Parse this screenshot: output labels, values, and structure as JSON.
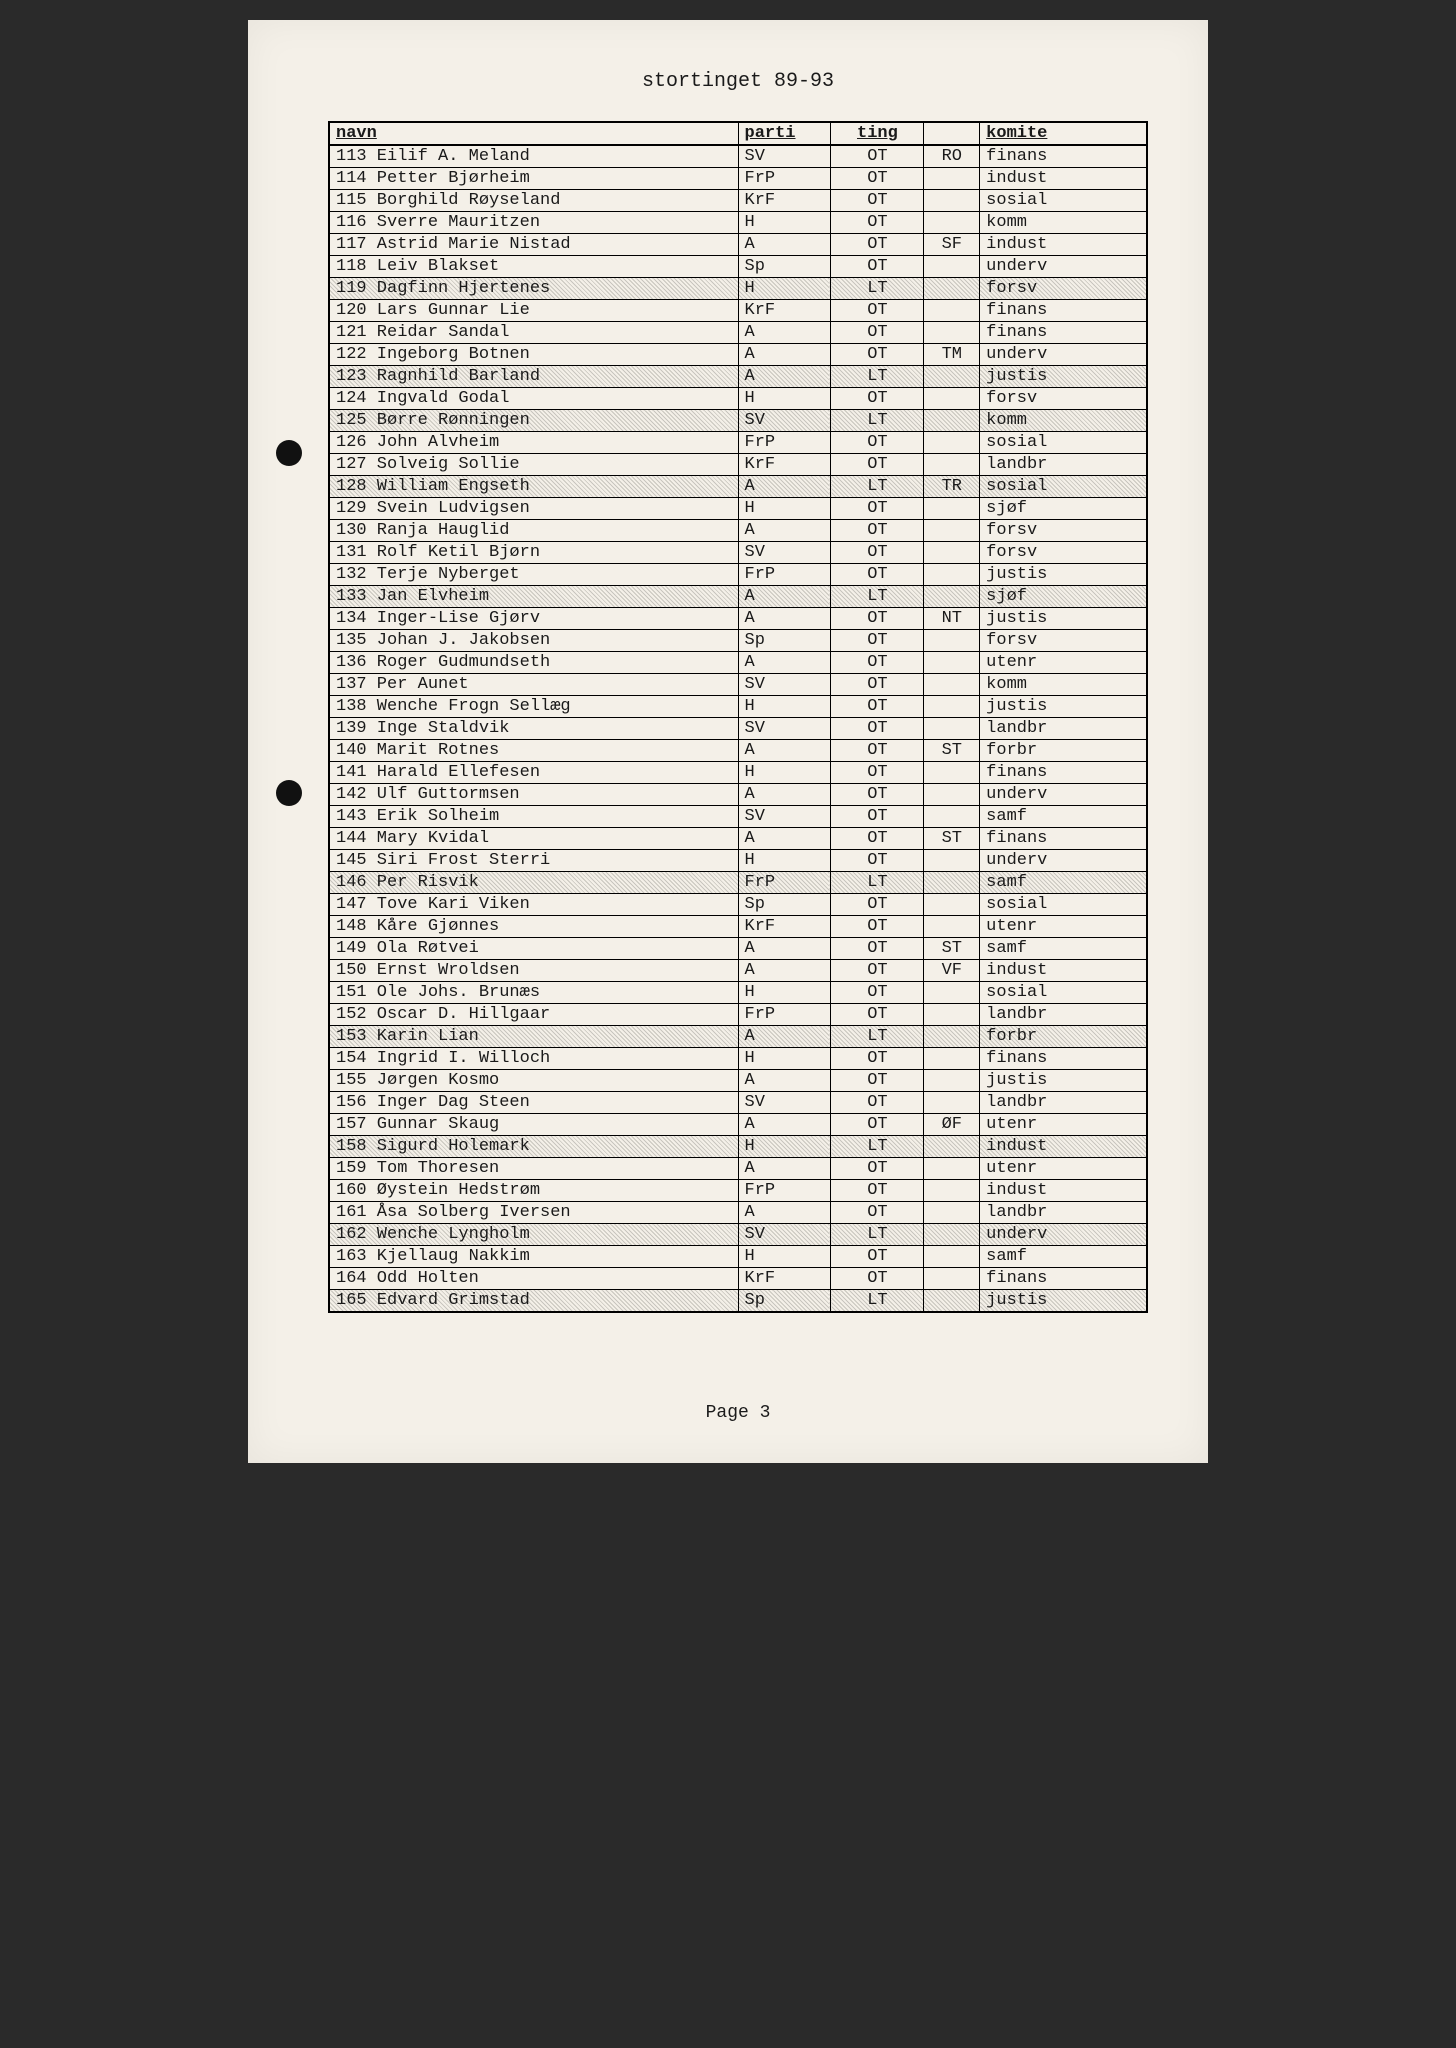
{
  "title": "stortinget 89-93",
  "footer": "Page 3",
  "columns": [
    "navn",
    "parti",
    "ting",
    "",
    "komite"
  ],
  "rows": [
    {
      "n": 113,
      "navn": "Eilif A. Meland",
      "parti": "SV",
      "ting": "OT",
      "reg": "RO",
      "komite": "finans",
      "shaded": false
    },
    {
      "n": 114,
      "navn": "Petter Bjørheim",
      "parti": "FrP",
      "ting": "OT",
      "reg": "",
      "komite": "indust",
      "shaded": false
    },
    {
      "n": 115,
      "navn": "Borghild Røyseland",
      "parti": "KrF",
      "ting": "OT",
      "reg": "",
      "komite": "sosial",
      "shaded": false
    },
    {
      "n": 116,
      "navn": "Sverre Mauritzen",
      "parti": "H",
      "ting": "OT",
      "reg": "",
      "komite": "komm",
      "shaded": false
    },
    {
      "n": 117,
      "navn": "Astrid Marie Nistad",
      "parti": "A",
      "ting": "OT",
      "reg": "SF",
      "komite": "indust",
      "shaded": false
    },
    {
      "n": 118,
      "navn": "Leiv Blakset",
      "parti": "Sp",
      "ting": "OT",
      "reg": "",
      "komite": "underv",
      "shaded": false
    },
    {
      "n": 119,
      "navn": "Dagfinn Hjertenes",
      "parti": "H",
      "ting": "LT",
      "reg": "",
      "komite": "forsv",
      "shaded": true
    },
    {
      "n": 120,
      "navn": "Lars Gunnar Lie",
      "parti": "KrF",
      "ting": "OT",
      "reg": "",
      "komite": "finans",
      "shaded": false
    },
    {
      "n": 121,
      "navn": "Reidar Sandal",
      "parti": "A",
      "ting": "OT",
      "reg": "",
      "komite": "finans",
      "shaded": false
    },
    {
      "n": 122,
      "navn": "Ingeborg Botnen",
      "parti": "A",
      "ting": "OT",
      "reg": "TM",
      "komite": "underv",
      "shaded": false
    },
    {
      "n": 123,
      "navn": "Ragnhild Barland",
      "parti": "A",
      "ting": "LT",
      "reg": "",
      "komite": "justis",
      "shaded": true
    },
    {
      "n": 124,
      "navn": "Ingvald Godal",
      "parti": "H",
      "ting": "OT",
      "reg": "",
      "komite": "forsv",
      "shaded": false
    },
    {
      "n": 125,
      "navn": "Børre Rønningen",
      "parti": "SV",
      "ting": "LT",
      "reg": "",
      "komite": "komm",
      "shaded": true
    },
    {
      "n": 126,
      "navn": "John Alvheim",
      "parti": "FrP",
      "ting": "OT",
      "reg": "",
      "komite": "sosial",
      "shaded": false
    },
    {
      "n": 127,
      "navn": "Solveig Sollie",
      "parti": "KrF",
      "ting": "OT",
      "reg": "",
      "komite": "landbr",
      "shaded": false
    },
    {
      "n": 128,
      "navn": "William Engseth",
      "parti": "A",
      "ting": "LT",
      "reg": "TR",
      "komite": "sosial",
      "shaded": true
    },
    {
      "n": 129,
      "navn": "Svein Ludvigsen",
      "parti": "H",
      "ting": "OT",
      "reg": "",
      "komite": "sjøf",
      "shaded": false
    },
    {
      "n": 130,
      "navn": "Ranja Hauglid",
      "parti": "A",
      "ting": "OT",
      "reg": "",
      "komite": "forsv",
      "shaded": false
    },
    {
      "n": 131,
      "navn": "Rolf Ketil Bjørn",
      "parti": "SV",
      "ting": "OT",
      "reg": "",
      "komite": "forsv",
      "shaded": false
    },
    {
      "n": 132,
      "navn": "Terje Nyberget",
      "parti": "FrP",
      "ting": "OT",
      "reg": "",
      "komite": "justis",
      "shaded": false
    },
    {
      "n": 133,
      "navn": "Jan Elvheim",
      "parti": "A",
      "ting": "LT",
      "reg": "",
      "komite": "sjøf",
      "shaded": true
    },
    {
      "n": 134,
      "navn": "Inger-Lise Gjørv",
      "parti": "A",
      "ting": "OT",
      "reg": "NT",
      "komite": "justis",
      "shaded": false
    },
    {
      "n": 135,
      "navn": "Johan J. Jakobsen",
      "parti": "Sp",
      "ting": "OT",
      "reg": "",
      "komite": "forsv",
      "shaded": false
    },
    {
      "n": 136,
      "navn": "Roger Gudmundseth",
      "parti": "A",
      "ting": "OT",
      "reg": "",
      "komite": "utenr",
      "shaded": false
    },
    {
      "n": 137,
      "navn": "Per Aunet",
      "parti": "SV",
      "ting": "OT",
      "reg": "",
      "komite": "komm",
      "shaded": false
    },
    {
      "n": 138,
      "navn": "Wenche Frogn Sellæg",
      "parti": "H",
      "ting": "OT",
      "reg": "",
      "komite": "justis",
      "shaded": false
    },
    {
      "n": 139,
      "navn": "Inge Staldvik",
      "parti": "SV",
      "ting": "OT",
      "reg": "",
      "komite": "landbr",
      "shaded": false
    },
    {
      "n": 140,
      "navn": "Marit Rotnes",
      "parti": "A",
      "ting": "OT",
      "reg": "ST",
      "komite": "forbr",
      "shaded": false
    },
    {
      "n": 141,
      "navn": "Harald Ellefesen",
      "parti": "H",
      "ting": "OT",
      "reg": "",
      "komite": "finans",
      "shaded": false
    },
    {
      "n": 142,
      "navn": "Ulf Guttormsen",
      "parti": "A",
      "ting": "OT",
      "reg": "",
      "komite": "underv",
      "shaded": false
    },
    {
      "n": 143,
      "navn": "Erik Solheim",
      "parti": "SV",
      "ting": "OT",
      "reg": "",
      "komite": "samf",
      "shaded": false
    },
    {
      "n": 144,
      "navn": "Mary Kvidal",
      "parti": "A",
      "ting": "OT",
      "reg": "ST",
      "komite": "finans",
      "shaded": false
    },
    {
      "n": 145,
      "navn": "Siri Frost Sterri",
      "parti": "H",
      "ting": "OT",
      "reg": "",
      "komite": "underv",
      "shaded": false
    },
    {
      "n": 146,
      "navn": "Per Risvik",
      "parti": "FrP",
      "ting": "LT",
      "reg": "",
      "komite": "samf",
      "shaded": true
    },
    {
      "n": 147,
      "navn": "Tove Kari Viken",
      "parti": "Sp",
      "ting": "OT",
      "reg": "",
      "komite": "sosial",
      "shaded": false
    },
    {
      "n": 148,
      "navn": "Kåre Gjønnes",
      "parti": "KrF",
      "ting": "OT",
      "reg": "",
      "komite": "utenr",
      "shaded": false
    },
    {
      "n": 149,
      "navn": "Ola Røtvei",
      "parti": "A",
      "ting": "OT",
      "reg": "ST",
      "komite": "samf",
      "shaded": false
    },
    {
      "n": 150,
      "navn": "Ernst Wroldsen",
      "parti": "A",
      "ting": "OT",
      "reg": "VF",
      "komite": "indust",
      "shaded": false
    },
    {
      "n": 151,
      "navn": "Ole Johs. Brunæs",
      "parti": "H",
      "ting": "OT",
      "reg": "",
      "komite": "sosial",
      "shaded": false
    },
    {
      "n": 152,
      "navn": "Oscar D. Hillgaar",
      "parti": "FrP",
      "ting": "OT",
      "reg": "",
      "komite": "landbr",
      "shaded": false
    },
    {
      "n": 153,
      "navn": "Karin Lian",
      "parti": "A",
      "ting": "LT",
      "reg": "",
      "komite": "forbr",
      "shaded": true
    },
    {
      "n": 154,
      "navn": "Ingrid I. Willoch",
      "parti": "H",
      "ting": "OT",
      "reg": "",
      "komite": "finans",
      "shaded": false
    },
    {
      "n": 155,
      "navn": "Jørgen Kosmo",
      "parti": "A",
      "ting": "OT",
      "reg": "",
      "komite": "justis",
      "shaded": false
    },
    {
      "n": 156,
      "navn": "Inger Dag Steen",
      "parti": "SV",
      "ting": "OT",
      "reg": "",
      "komite": "landbr",
      "shaded": false
    },
    {
      "n": 157,
      "navn": "Gunnar Skaug",
      "parti": "A",
      "ting": "OT",
      "reg": "ØF",
      "komite": "utenr",
      "shaded": false
    },
    {
      "n": 158,
      "navn": "Sigurd Holemark",
      "parti": "H",
      "ting": "LT",
      "reg": "",
      "komite": "indust",
      "shaded": true
    },
    {
      "n": 159,
      "navn": "Tom Thoresen",
      "parti": "A",
      "ting": "OT",
      "reg": "",
      "komite": "utenr",
      "shaded": false
    },
    {
      "n": 160,
      "navn": "Øystein Hedstrøm",
      "parti": "FrP",
      "ting": "OT",
      "reg": "",
      "komite": "indust",
      "shaded": false
    },
    {
      "n": 161,
      "navn": "Åsa Solberg Iversen",
      "parti": "A",
      "ting": "OT",
      "reg": "",
      "komite": "landbr",
      "shaded": false
    },
    {
      "n": 162,
      "navn": "Wenche Lyngholm",
      "parti": "SV",
      "ting": "LT",
      "reg": "",
      "komite": "underv",
      "shaded": true
    },
    {
      "n": 163,
      "navn": "Kjellaug Nakkim",
      "parti": "H",
      "ting": "OT",
      "reg": "",
      "komite": "samf",
      "shaded": false
    },
    {
      "n": 164,
      "navn": "Odd Holten",
      "parti": "KrF",
      "ting": "OT",
      "reg": "",
      "komite": "finans",
      "shaded": false
    },
    {
      "n": 165,
      "navn": "Edvard Grimstad",
      "parti": "Sp",
      "ting": "LT",
      "reg": "",
      "komite": "justis",
      "shaded": true
    }
  ]
}
